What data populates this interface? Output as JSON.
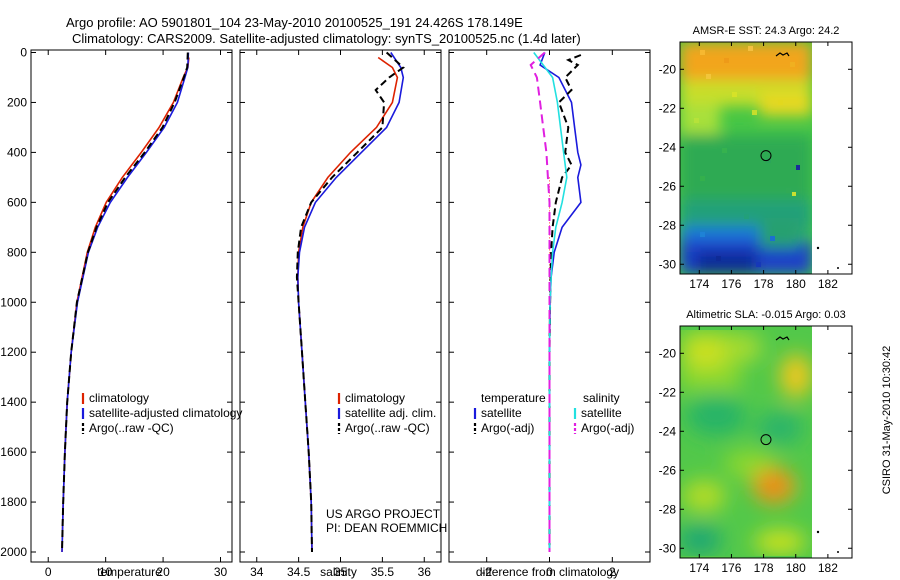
{
  "title_line1": "Argo profile: AO 5901801_104 23-May-2010 20100525_191 24.426S 178.149E",
  "title_line2": "Climatology: CARS2009. Satellite-adjusted climatology: synTS_20100525.nc (1.4d later)",
  "credit_line1": "US ARGO PROJECT",
  "credit_line2": "PI: DEAN ROEMMICH",
  "timestamp": "CSIRO 31-May-2010 10:30:42",
  "colors": {
    "climatology": "#dd2200",
    "satellite": "#1a1adc",
    "argo": "#000000",
    "sal_satellite": "#22e0e0",
    "sal_argo": "#e020e0"
  },
  "chart_data": [
    {
      "type": "line",
      "name": "temperature-profile",
      "xlabel": "temperature",
      "ylabel": "",
      "xlim": [
        -3,
        32
      ],
      "ylim": [
        2040,
        -10
      ],
      "xticks": [
        0,
        10,
        20,
        30
      ],
      "yticks": [
        0,
        200,
        400,
        600,
        800,
        1000,
        1200,
        1400,
        1600,
        1800,
        2000
      ],
      "legend": [
        "climatology",
        "satellite-adjusted climatology",
        "Argo(..raw -QC)"
      ],
      "series": [
        {
          "name": "climatology",
          "color": "#dd2200",
          "dash": "",
          "depth": [
            20,
            60,
            100,
            200,
            300,
            400,
            500,
            600,
            700,
            800,
            1000,
            1200,
            1400,
            1600,
            1800,
            2000
          ],
          "values": [
            24.5,
            24.3,
            23.5,
            21.8,
            19.3,
            16.2,
            12.9,
            10.1,
            8.2,
            6.8,
            5.0,
            4.0,
            3.3,
            2.9,
            2.6,
            2.4
          ]
        },
        {
          "name": "satellite-adjusted climatology",
          "color": "#1a1adc",
          "dash": "",
          "depth": [
            0,
            60,
            100,
            200,
            300,
            400,
            500,
            600,
            700,
            800,
            1000,
            1200,
            1400,
            1600,
            1800,
            2000
          ],
          "values": [
            24.4,
            24.3,
            23.8,
            22.5,
            20.2,
            17.1,
            13.8,
            10.8,
            8.6,
            7.0,
            5.1,
            4.0,
            3.3,
            2.9,
            2.6,
            2.4
          ]
        },
        {
          "name": "Argo(..raw -QC)",
          "color": "#000000",
          "dash": "7,4",
          "depth": [
            0,
            60,
            100,
            200,
            300,
            400,
            500,
            600,
            700,
            800,
            1000,
            1200,
            1400,
            1600,
            1800,
            2000
          ],
          "values": [
            24.3,
            24.2,
            23.6,
            22.0,
            19.9,
            16.8,
            13.4,
            10.4,
            8.4,
            6.9,
            5.0,
            4.0,
            3.3,
            2.9,
            2.6,
            2.4
          ]
        }
      ]
    },
    {
      "type": "line",
      "name": "salinity-profile",
      "xlabel": "salinity",
      "ylabel": "",
      "xlim": [
        33.8,
        36.2
      ],
      "ylim": [
        2040,
        -10
      ],
      "xticks": [
        34,
        34.5,
        35,
        35.5,
        36
      ],
      "legend": [
        "climatology",
        "satellite adj. clim.",
        "Argo(..raw -QC)"
      ],
      "series": [
        {
          "name": "climatology",
          "color": "#dd2200",
          "dash": "",
          "depth": [
            20,
            60,
            100,
            200,
            300,
            400,
            500,
            600,
            700,
            800,
            900,
            1000,
            1200,
            1400,
            1600,
            1800,
            2000
          ],
          "values": [
            35.45,
            35.62,
            35.68,
            35.62,
            35.43,
            35.12,
            34.85,
            34.65,
            34.55,
            34.5,
            34.49,
            34.5,
            34.54,
            34.58,
            34.62,
            34.65,
            34.66
          ]
        },
        {
          "name": "satellite adj. clim.",
          "color": "#1a1adc",
          "dash": "",
          "depth": [
            0,
            60,
            100,
            200,
            300,
            400,
            500,
            600,
            700,
            800,
            900,
            1000,
            1200,
            1400,
            1600,
            1800,
            2000
          ],
          "values": [
            35.6,
            35.72,
            35.75,
            35.7,
            35.55,
            35.25,
            34.95,
            34.7,
            34.57,
            34.51,
            34.49,
            34.5,
            34.54,
            34.58,
            34.62,
            34.65,
            34.66
          ]
        },
        {
          "name": "Argo(..raw -QC)",
          "color": "#000000",
          "dash": "7,4",
          "depth": [
            0,
            60,
            100,
            150,
            200,
            300,
            400,
            500,
            600,
            700,
            800,
            900,
            1000,
            1200,
            1400,
            1600,
            1800,
            2000
          ],
          "values": [
            35.55,
            35.75,
            35.58,
            35.42,
            35.52,
            35.5,
            35.2,
            34.9,
            34.65,
            34.53,
            34.49,
            34.48,
            34.5,
            34.54,
            34.58,
            34.62,
            34.65,
            34.66
          ]
        }
      ]
    },
    {
      "type": "line",
      "name": "difference-profile",
      "xlabel": "difference from climatology",
      "ylabel": "",
      "xlim": [
        -3.2,
        3.2
      ],
      "ylim": [
        2040,
        -10
      ],
      "xticks": [
        -2,
        0,
        2
      ],
      "legend_headers": [
        "temperature",
        "salinity"
      ],
      "legend": [
        "satellite",
        "Argo(-adj)",
        "satellite",
        "Argo(-adj)"
      ],
      "series": [
        {
          "name": "temperature satellite",
          "color": "#1a1adc",
          "dash": "",
          "depth": [
            0,
            50,
            100,
            200,
            300,
            400,
            450,
            500,
            600,
            700,
            800,
            900,
            1000,
            1200,
            1600,
            2000
          ],
          "values": [
            -0.15,
            -0.3,
            0.3,
            0.7,
            0.8,
            0.9,
            1.0,
            0.9,
            1.0,
            0.4,
            0.15,
            0.05,
            0.02,
            0.0,
            0.0,
            0.0
          ]
        },
        {
          "name": "temperature Argo(-adj)",
          "color": "#000000",
          "dash": "7,4",
          "depth": [
            10,
            30,
            50,
            100,
            150,
            200,
            300,
            400,
            450,
            500,
            600,
            700,
            800,
            1000,
            1200,
            1600,
            2000
          ],
          "values": [
            1.0,
            0.6,
            0.9,
            0.5,
            0.7,
            0.3,
            0.6,
            0.5,
            0.7,
            0.4,
            0.2,
            0.1,
            0.05,
            0.02,
            0.0,
            0.0,
            0.0
          ]
        },
        {
          "name": "salinity satellite",
          "color": "#22e0e0",
          "dash": "",
          "depth": [
            0,
            50,
            100,
            200,
            300,
            400,
            500,
            600,
            700,
            800,
            900,
            1000,
            1200,
            1600,
            2000
          ],
          "values": [
            -0.5,
            -0.2,
            0.1,
            0.25,
            0.35,
            0.45,
            0.55,
            0.4,
            0.2,
            0.1,
            0.05,
            0.02,
            0.0,
            0.0,
            0.0
          ]
        },
        {
          "name": "salinity Argo(-adj)",
          "color": "#e020e0",
          "dash": "9,5",
          "depth": [
            0,
            50,
            100,
            200,
            300,
            400,
            500,
            600,
            700,
            800,
            1000,
            1200,
            1600,
            2000
          ],
          "values": [
            -0.15,
            -0.6,
            -0.4,
            -0.3,
            -0.2,
            -0.1,
            -0.05,
            0.0,
            0.0,
            0.0,
            0.0,
            0.0,
            0.0,
            0.0
          ]
        }
      ]
    },
    {
      "type": "heatmap",
      "name": "sst-map",
      "title": "AMSR-E SST: 24.3 Argo: 24.2",
      "xlim": [
        172.8,
        183.5
      ],
      "ylim": [
        -30.5,
        -18.6
      ],
      "xticks": [
        174,
        176,
        178,
        180,
        182
      ],
      "yticks": [
        -20,
        -22,
        -24,
        -26,
        -28,
        -30
      ],
      "data_xlim": [
        172.8,
        180
      ],
      "marker": {
        "lon": 178.149,
        "lat": -24.426
      }
    },
    {
      "type": "heatmap",
      "name": "sla-map",
      "title": "Altimetric SLA: -0.015 Argo: 0.03",
      "xlim": [
        172.8,
        183.5
      ],
      "ylim": [
        -30.5,
        -18.6
      ],
      "xticks": [
        174,
        176,
        178,
        180,
        182
      ],
      "yticks": [
        -20,
        -22,
        -24,
        -26,
        -28,
        -30
      ],
      "data_xlim": [
        172.8,
        180
      ],
      "marker": {
        "lon": 178.149,
        "lat": -24.426
      }
    }
  ]
}
